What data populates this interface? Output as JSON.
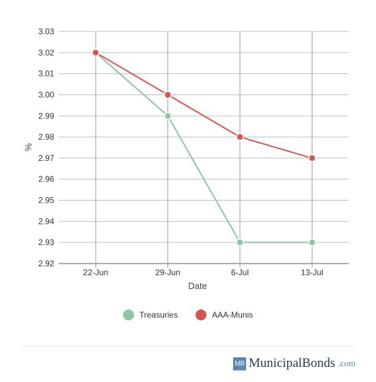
{
  "chart_data": {
    "type": "line",
    "categories": [
      "22-Jun",
      "29-Jun",
      "6-Jul",
      "13-Jul"
    ],
    "series": [
      {
        "name": "Treasuries",
        "values": [
          3.02,
          2.99,
          2.93,
          2.93
        ],
        "color": "#8ec6a5"
      },
      {
        "name": "AAA-Munis",
        "values": [
          3.02,
          3.0,
          2.98,
          2.97
        ],
        "color": "#d9534f"
      }
    ],
    "xlabel": "Date",
    "ylabel": "%",
    "ylim": [
      2.92,
      3.03
    ],
    "yticks": [
      "3.03",
      "3.02",
      "3.01",
      "3.00",
      "2.99",
      "2.98",
      "2.97",
      "2.96",
      "2.95",
      "2.94",
      "2.93",
      "2.92"
    ],
    "grid": true,
    "legend_position": "bottom"
  },
  "legend": {
    "items": [
      {
        "label": "Treasuries",
        "color": "#8ec6a5"
      },
      {
        "label": "AAA-Munis",
        "color": "#d9534f"
      }
    ]
  },
  "brand": {
    "badge": "MB",
    "name": "MunicipalBonds",
    "tld": ".com"
  }
}
